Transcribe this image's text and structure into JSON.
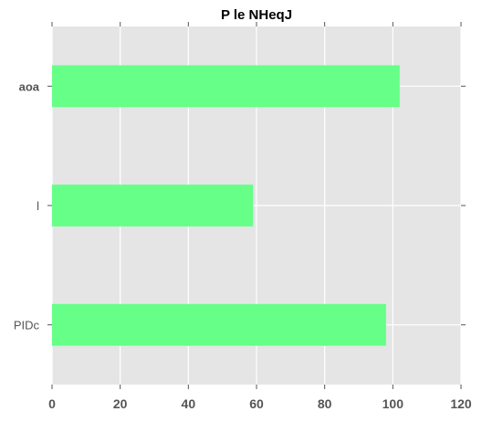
{
  "chart_data": {
    "type": "bar",
    "orientation": "horizontal",
    "title": "P le NHeqJ",
    "categories": [
      "aoa",
      "l",
      "PIDc"
    ],
    "values": [
      102,
      59,
      98
    ],
    "xlabel": "",
    "ylabel": "",
    "xlim": [
      0,
      120
    ],
    "xticks": [
      0,
      20,
      40,
      60,
      80,
      100,
      120
    ],
    "grid": true,
    "colors": {
      "bar": "#66ff88",
      "plot_background": "#e5e5e5",
      "grid": "#ffffff",
      "tick_label": "#555555",
      "title": "#000000"
    }
  }
}
